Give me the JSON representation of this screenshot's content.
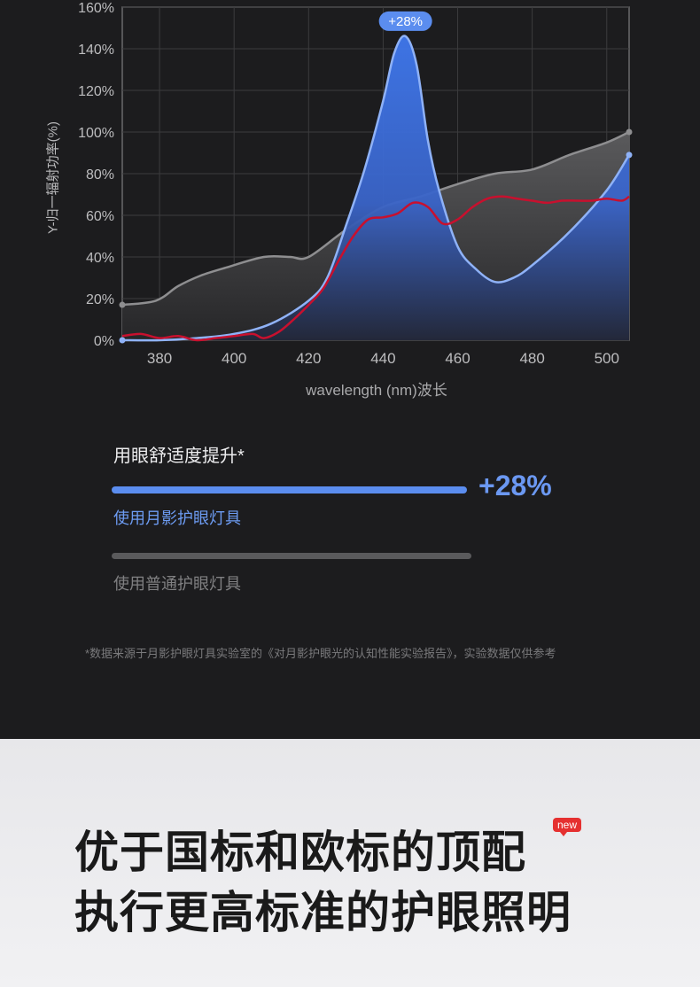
{
  "chart_data": {
    "type": "area",
    "ylabel": "Y-归一辐射功率(%)",
    "xlabel": "wavelength (nm)波长",
    "xlim": [
      370,
      506
    ],
    "ylim": [
      0,
      160
    ],
    "xticks": [
      380,
      400,
      420,
      440,
      460,
      480,
      500
    ],
    "yticks": [
      0,
      20,
      40,
      60,
      80,
      100,
      120,
      140,
      160
    ],
    "ytick_labels": [
      "0%",
      "20%",
      "40%",
      "60%",
      "80%",
      "100%",
      "120%",
      "140%",
      "160%"
    ],
    "grid": true,
    "peak_annotation": {
      "text": "+28%",
      "x": 446,
      "y": 146
    },
    "series": [
      {
        "name": "",
        "style": "gray-area",
        "color": "#8e8e90",
        "x": [
          370,
          379,
          385,
          391,
          398,
          408,
          415,
          420,
          430,
          440,
          450,
          460,
          470,
          480,
          490,
          500,
          506
        ],
        "y": [
          17,
          19,
          26,
          31,
          35,
          40,
          40,
          40,
          53,
          64,
          69,
          75,
          80,
          82,
          89,
          95,
          100
        ]
      },
      {
        "name": "",
        "style": "blue-area",
        "color": "#4e7fe6",
        "x": [
          370,
          380,
          390,
          400,
          410,
          420,
          425,
          430,
          435,
          440,
          443,
          446,
          449,
          452,
          455,
          460,
          465,
          470,
          475,
          480,
          490,
          500,
          506
        ],
        "y": [
          0,
          0,
          1,
          3,
          8,
          19,
          30,
          55,
          82,
          115,
          138,
          146,
          132,
          96,
          72,
          45,
          34,
          28,
          30,
          36,
          52,
          72,
          89
        ]
      },
      {
        "name": "",
        "style": "red-line",
        "color": "#c8102e",
        "x": [
          370,
          375,
          380,
          385,
          390,
          395,
          400,
          405,
          408,
          412,
          416,
          420,
          424,
          428,
          432,
          436,
          440,
          444,
          448,
          452,
          456,
          460,
          464,
          468,
          472,
          476,
          480,
          484,
          488,
          492,
          496,
          500,
          504,
          506
        ],
        "y": [
          2,
          3,
          1,
          2,
          0,
          1,
          2,
          3,
          1,
          4,
          10,
          17,
          25,
          38,
          50,
          58,
          59,
          61,
          66,
          64,
          56,
          58,
          64,
          68,
          69,
          68,
          67,
          66,
          67,
          67,
          67,
          68,
          67,
          69
        ]
      }
    ]
  },
  "improvement": {
    "title": "用眼舒适度提升*",
    "value_pct": 28,
    "value_text": "+28%",
    "ours_label": "使用月影护眼灯具",
    "others_label": "使用普通护眼灯具",
    "ours_fraction": 1.0,
    "others_fraction": 1.0
  },
  "footnote": "*数据来源于月影护眼灯具实验室的《对月影护眼光的认知性能实验报告》，实验数据仅供参考",
  "headline": {
    "line1": "优于国标和欧标的顶配",
    "line2": "执行更高标准的护眼照明",
    "badge": "new"
  },
  "colors": {
    "accent_blue": "#5b8def",
    "red_line": "#c8102e",
    "badge_red": "#e53030"
  }
}
